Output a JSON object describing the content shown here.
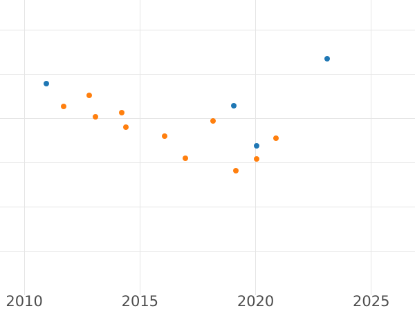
{
  "figure": {
    "background_color": "#ffffff",
    "grid_color": "#e5e5e5",
    "tick_label_color": "#4d4d4d"
  },
  "chart_data": {
    "type": "scatter",
    "title": "",
    "xlabel": "",
    "ylabel": "",
    "grid": true,
    "legend_visible": false,
    "x_axis": {
      "range": [
        2008.95,
        2026.89
      ],
      "ticks": [
        2010,
        2015,
        2020,
        2025
      ],
      "tick_labels": [
        "2010",
        "2015",
        "2020",
        "2025"
      ]
    },
    "y_axis": {
      "range": [
        -0.81,
        5.68
      ],
      "gridline_values": [
        0,
        1,
        2,
        3,
        4,
        5
      ],
      "tick_labels_visible": false
    },
    "series": [
      {
        "name": "blue-series",
        "color": "#1f77b4",
        "marker": "circle",
        "points": [
          {
            "x": 2010.94,
            "y": 3.79
          },
          {
            "x": 2019.05,
            "y": 3.29
          },
          {
            "x": 2020.05,
            "y": 2.38
          },
          {
            "x": 2023.09,
            "y": 4.35
          }
        ]
      },
      {
        "name": "orange-series",
        "color": "#ff7f0e",
        "marker": "circle",
        "points": [
          {
            "x": 2011.7,
            "y": 3.27
          },
          {
            "x": 2012.8,
            "y": 3.52
          },
          {
            "x": 2013.07,
            "y": 3.03
          },
          {
            "x": 2014.21,
            "y": 3.13
          },
          {
            "x": 2014.4,
            "y": 2.8
          },
          {
            "x": 2016.08,
            "y": 2.6
          },
          {
            "x": 2016.97,
            "y": 2.1
          },
          {
            "x": 2018.17,
            "y": 2.95
          },
          {
            "x": 2019.16,
            "y": 1.82
          },
          {
            "x": 2020.05,
            "y": 2.09
          },
          {
            "x": 2020.87,
            "y": 2.55
          }
        ]
      }
    ]
  }
}
